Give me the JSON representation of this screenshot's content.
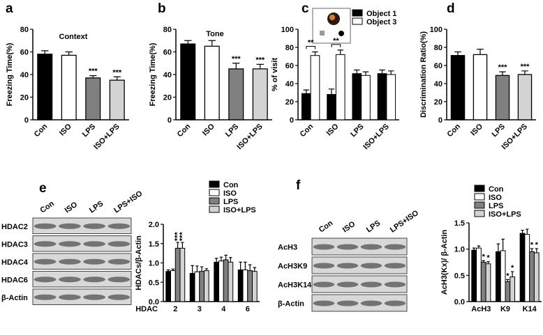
{
  "panel_labels": [
    "a",
    "b",
    "c",
    "d",
    "e",
    "f"
  ],
  "blots": [
    {
      "lanes": [
        "Con",
        "ISO",
        "LPS",
        "LPS+ISO"
      ],
      "rows": [
        "HDAC2",
        "HDAC3",
        "HDAC4",
        "HDAC6",
        "β-Actin"
      ]
    },
    {
      "lanes": [
        "Con",
        "ISO",
        "LPS",
        "LPS+ISO"
      ],
      "rows": [
        "AcH3",
        "AcH3K9",
        "AcH3K14",
        "β-Actin"
      ]
    }
  ],
  "chart_data": [
    {
      "type": "bar",
      "title": "Context",
      "ylabel": "Freezing Time(%)",
      "categories": [
        "Con",
        "ISO",
        "LPS",
        "ISO+LPS"
      ],
      "values": [
        58,
        57,
        37,
        35
      ],
      "errors": [
        3,
        3,
        2,
        3
      ],
      "colors": [
        "#000000",
        "#ffffff",
        "#808080",
        "#d3d3d3"
      ],
      "significance": [
        null,
        null,
        "***",
        "***"
      ],
      "ylim": [
        0,
        80
      ],
      "yticks": [
        0,
        20,
        40,
        60,
        80
      ]
    },
    {
      "type": "bar",
      "title": "Tone",
      "ylabel": "Freezing Time(%)",
      "categories": [
        "Con",
        "ISO",
        "LPS",
        "ISO+LPS"
      ],
      "values": [
        67,
        65,
        45,
        45
      ],
      "errors": [
        3,
        5,
        5,
        4
      ],
      "colors": [
        "#000000",
        "#ffffff",
        "#808080",
        "#d3d3d3"
      ],
      "significance": [
        null,
        null,
        "***",
        "***"
      ],
      "ylim": [
        0,
        80
      ],
      "yticks": [
        0,
        20,
        40,
        60,
        80
      ]
    },
    {
      "type": "grouped-bar",
      "ylabel": "% of visit",
      "categories": [
        "Con",
        "ISO",
        "LPS",
        "ISO+LPS"
      ],
      "series": [
        {
          "name": "Object 1",
          "color": "#000000",
          "values": [
            29,
            28,
            51,
            51
          ],
          "errors": [
            4,
            6,
            4,
            4
          ]
        },
        {
          "name": "Object 3",
          "color": "#ffffff",
          "values": [
            71,
            72,
            49,
            50
          ],
          "errors": [
            4,
            5,
            4,
            4
          ],
          "significance": [
            "**",
            "**",
            null,
            null
          ]
        }
      ],
      "ylim": [
        0,
        100
      ],
      "yticks": [
        0,
        20,
        40,
        60,
        80,
        100
      ]
    },
    {
      "type": "bar",
      "ylabel": "Discrimination Ratio(%)",
      "categories": [
        "Con",
        "ISO",
        "LPS",
        "ISO+LPS"
      ],
      "values": [
        71,
        72,
        49,
        50
      ],
      "errors": [
        4,
        6,
        4,
        4
      ],
      "colors": [
        "#000000",
        "#ffffff",
        "#808080",
        "#d3d3d3"
      ],
      "significance": [
        null,
        null,
        "***",
        "***"
      ],
      "ylim": [
        0,
        100
      ],
      "yticks": [
        0,
        20,
        40,
        60,
        80,
        100
      ]
    },
    {
      "type": "grouped-bar",
      "ylabel": "HDACs/β-Actin",
      "xlabel": "HDAC",
      "categories": [
        "2",
        "3",
        "4",
        "6"
      ],
      "series": [
        {
          "name": "Con",
          "color": "#000000",
          "values": [
            0.78,
            0.73,
            1.02,
            0.82
          ],
          "errors": [
            0.04,
            0.2,
            0.1,
            0.2
          ]
        },
        {
          "name": "ISO",
          "color": "#ffffff",
          "values": [
            0.8,
            0.77,
            1.05,
            0.82
          ],
          "errors": [
            0.04,
            0.15,
            0.1,
            0.2
          ]
        },
        {
          "name": "LPS",
          "color": "#808080",
          "values": [
            1.38,
            0.78,
            1.08,
            0.8
          ],
          "errors": [
            0.15,
            0.12,
            0.12,
            0.15
          ],
          "significance": [
            "***",
            null,
            null,
            null
          ]
        },
        {
          "name": "ISO+LPS",
          "color": "#d3d3d3",
          "values": [
            1.38,
            0.8,
            1.02,
            0.78
          ],
          "errors": [
            0.15,
            0.05,
            0.12,
            0.1
          ],
          "significance": [
            "***",
            null,
            null,
            null
          ]
        }
      ],
      "ylim": [
        0,
        2
      ],
      "yticks": [
        {
          "value": 0,
          "label": "0.0"
        },
        0.5,
        {
          "value": 1,
          "label": "1.0"
        },
        1.5,
        {
          "value": 2,
          "label": "2.0"
        }
      ]
    },
    {
      "type": "grouped-bar",
      "ylabel": "AcH3(Kx)/ β-Actin",
      "categories": [
        "AcH3",
        "K9",
        "K14"
      ],
      "series": [
        {
          "name": "Con",
          "color": "#000000",
          "values": [
            0.98,
            0.95,
            1.3
          ],
          "errors": [
            0.04,
            0.15,
            0.06
          ]
        },
        {
          "name": "ISO",
          "color": "#ffffff",
          "values": [
            1.02,
            0.97,
            1.28
          ],
          "errors": [
            0.04,
            0.22,
            0.1
          ]
        },
        {
          "name": "LPS",
          "color": "#808080",
          "values": [
            0.75,
            0.38,
            0.95
          ],
          "errors": [
            0.03,
            0.04,
            0.06
          ],
          "significance": [
            "*",
            "*",
            "*"
          ]
        },
        {
          "name": "ISO+LPS",
          "color": "#d3d3d3",
          "values": [
            0.72,
            0.47,
            0.93
          ],
          "errors": [
            0.04,
            0.1,
            0.08
          ],
          "significance": [
            "*",
            "*",
            "*"
          ]
        }
      ],
      "ylim": [
        0,
        1.5
      ],
      "yticks": [
        {
          "value": 0,
          "label": "0.0"
        },
        0.5,
        {
          "value": 1,
          "label": "1.0"
        },
        1.5
      ]
    }
  ]
}
